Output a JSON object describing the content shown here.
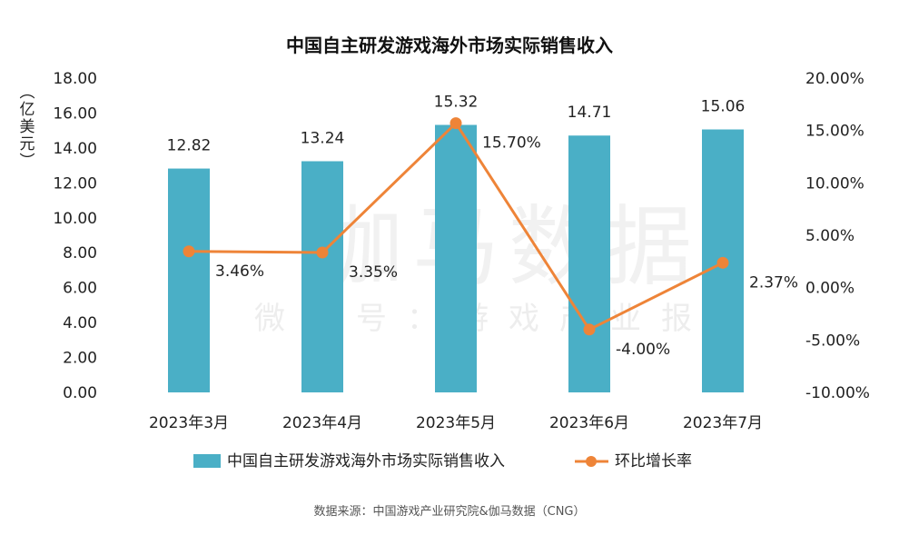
{
  "title": "中国自主研发游戏海外市场实际销售收入",
  "source": "数据来源：中国游戏产业研究院&伽马数据（CNG）",
  "watermark": {
    "main": "伽马数据",
    "sub": "微信号：游戏产业报告"
  },
  "colors": {
    "bar": "#4aafc6",
    "line": "#ee8438"
  },
  "chart_data": {
    "type": "bar",
    "categories": [
      "2023年3月",
      "2023年4月",
      "2023年5月",
      "2023年6月",
      "2023年7月"
    ],
    "series": [
      {
        "name": "中国自主研发游戏海外市场实际销售收入",
        "type": "bar",
        "axis": "left",
        "values": [
          12.82,
          13.24,
          15.32,
          14.71,
          15.06
        ],
        "labels": [
          "12.82",
          "13.24",
          "15.32",
          "14.71",
          "15.06"
        ]
      },
      {
        "name": "环比增长率",
        "type": "line",
        "axis": "right",
        "values": [
          3.46,
          3.35,
          15.7,
          -4.0,
          2.37
        ],
        "labels": [
          "3.46%",
          "3.35%",
          "15.70%",
          "-4.00%",
          "2.37%"
        ]
      }
    ],
    "ylabel_left": "亿美元",
    "ylim_left": [
      0,
      18
    ],
    "yticks_left": [
      "0.00",
      "2.00",
      "4.00",
      "6.00",
      "8.00",
      "10.00",
      "12.00",
      "14.00",
      "16.00",
      "18.00"
    ],
    "ylim_right": [
      -10,
      20
    ],
    "yticks_right": [
      "-10.00%",
      "-5.00%",
      "0.00%",
      "5.00%",
      "10.00%",
      "15.00%",
      "20.00%"
    ],
    "grid": false,
    "legend": "bottom"
  }
}
